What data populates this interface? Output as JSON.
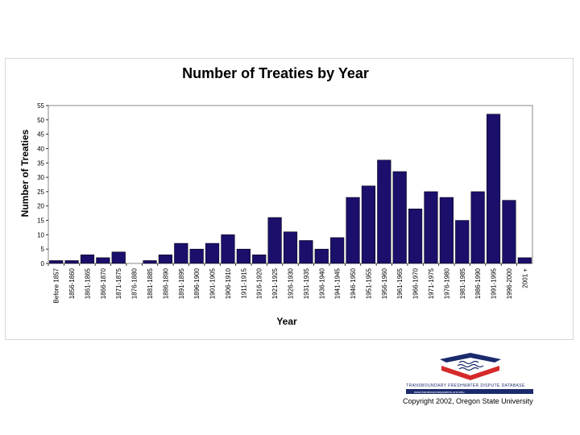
{
  "chart_data": {
    "type": "bar",
    "title": "Number of Treaties by Year",
    "xlabel": "Year",
    "ylabel": "Number of Treaties",
    "ylim": [
      0,
      55
    ],
    "yticks": [
      0,
      5,
      10,
      15,
      20,
      25,
      30,
      35,
      40,
      45,
      50,
      55
    ],
    "grid": false,
    "legend": "none",
    "bar_color": "#1a0f6b",
    "categories": [
      "Before 1857",
      "1856-1860",
      "1861-1865",
      "1866-1870",
      "1871-1875",
      "1876-1880",
      "1881-1885",
      "1886-1890",
      "1891-1895",
      "1896-1900",
      "1901-1905",
      "1906-1910",
      "1911-1915",
      "1916-1920",
      "1921-1925",
      "1926-1930",
      "1931-1935",
      "1936-1940",
      "1941-1945",
      "1946-1950",
      "1951-1955",
      "1956-1960",
      "1961-1965",
      "1966-1970",
      "1971-1975",
      "1976-1980",
      "1981-1985",
      "1986-1990",
      "1991-1995",
      "1996-2000",
      "2001 +"
    ],
    "values": [
      1,
      1,
      3,
      2,
      4,
      0,
      1,
      3,
      7,
      5,
      7,
      10,
      5,
      3,
      16,
      11,
      8,
      5,
      9,
      23,
      27,
      36,
      32,
      19,
      25,
      23,
      15,
      25,
      52,
      22,
      2
    ]
  },
  "logo": {
    "text": "TRANSBOUNDARY FRESHWATER DISPUTE DATABASE",
    "url_text": "www.transboundarywaters.orst.edu",
    "colors": {
      "navy": "#1a2a6c",
      "red": "#d42a2a"
    }
  },
  "copyright": "Copyright 2002, Oregon State University"
}
